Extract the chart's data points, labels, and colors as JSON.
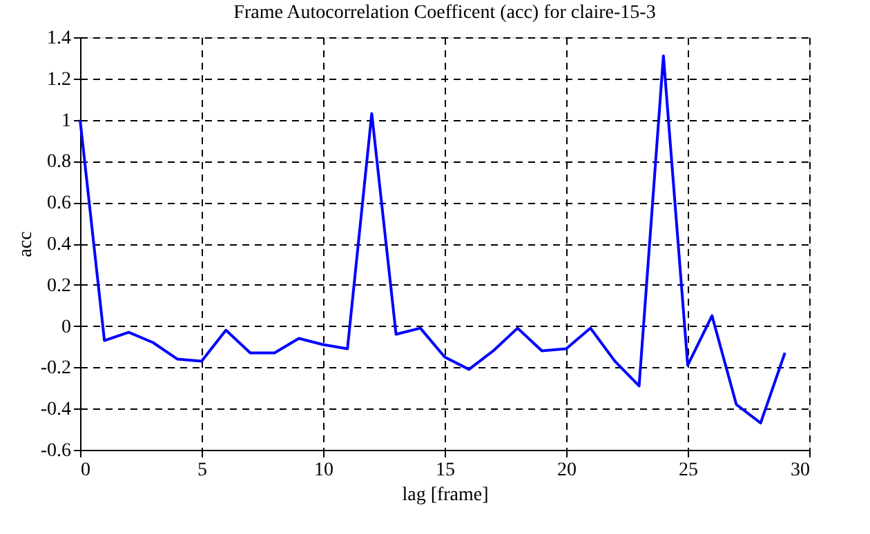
{
  "chart_data": {
    "type": "line",
    "title": "Frame Autocorrelation Coefficent (acc) for claire-15-3",
    "xlabel": "lag [frame]",
    "ylabel": "acc",
    "x": [
      0,
      1,
      2,
      3,
      4,
      5,
      6,
      7,
      8,
      9,
      10,
      11,
      12,
      13,
      14,
      15,
      16,
      17,
      18,
      19,
      20,
      21,
      22,
      23,
      24,
      25,
      26,
      27,
      28,
      29
    ],
    "series": [
      {
        "color": "#0000ff",
        "values": [
          1.0,
          -0.07,
          -0.03,
          -0.08,
          -0.16,
          -0.17,
          -0.02,
          -0.13,
          -0.13,
          -0.06,
          -0.09,
          -0.11,
          1.03,
          -0.04,
          -0.01,
          -0.15,
          -0.21,
          -0.12,
          -0.01,
          -0.12,
          -0.11,
          -0.01,
          -0.17,
          -0.29,
          1.31,
          -0.19,
          0.05,
          -0.38,
          -0.47,
          -0.13
        ]
      }
    ],
    "xlim": [
      0,
      30
    ],
    "xticks": [
      0,
      5,
      10,
      15,
      20,
      25,
      30
    ],
    "ylim": [
      -0.6,
      1.4
    ],
    "yticks": [
      -0.6,
      -0.4,
      -0.2,
      0,
      0.2,
      0.4,
      0.6,
      0.8,
      1,
      1.2,
      1.4
    ],
    "grid": true,
    "marker": "none",
    "line_style": "solid"
  }
}
